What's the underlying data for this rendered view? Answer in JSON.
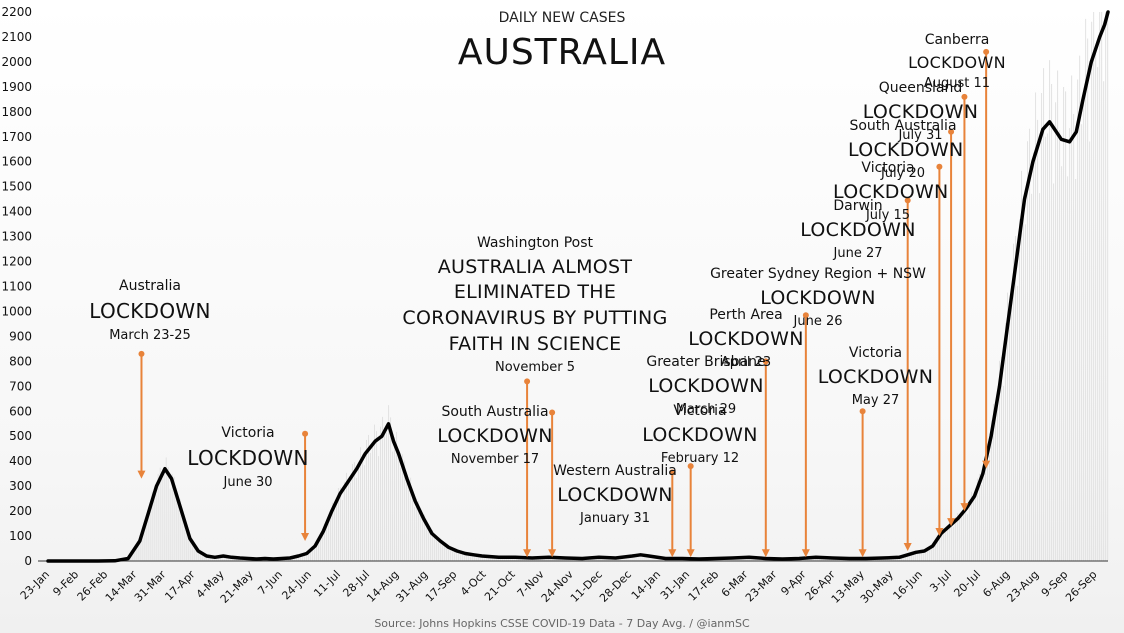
{
  "chart_data": {
    "type": "line",
    "title": "AUSTRALIA",
    "subtitle": "DAILY NEW CASES",
    "source": "Source: Johns Hopkins CSSE COVID-19 Data - 7 Day Avg. / @ianmSC",
    "ylim": [
      0,
      2200
    ],
    "yticks": [
      "0",
      "100",
      "200",
      "300",
      "400",
      "500",
      "600",
      "700",
      "800",
      "900",
      "1000",
      "1100",
      "1200",
      "1300",
      "1400",
      "1500",
      "1600",
      "1700",
      "1800",
      "1900",
      "2000",
      "2100",
      "2200"
    ],
    "xticks": [
      "23-Jan",
      "9-Feb",
      "26-Feb",
      "14-Mar",
      "31-Mar",
      "17-Apr",
      "4-May",
      "21-May",
      "7-Jun",
      "24-Jun",
      "11-Jul",
      "28-Jul",
      "14-Aug",
      "31-Aug",
      "17-Sep",
      "4-Oct",
      "21-Oct",
      "7-Nov",
      "24-Nov",
      "11-Dec",
      "28-Dec",
      "14-Jan",
      "31-Jan",
      "17-Feb",
      "6-Mar",
      "23-Mar",
      "9-Apr",
      "26-Apr",
      "13-May",
      "30-May",
      "16-Jun",
      "3-Jul",
      "20-Jul",
      "6-Aug",
      "23-Aug",
      "9-Sep",
      "26-Sep"
    ],
    "series": [
      {
        "points": [
          [
            0,
            0
          ],
          [
            1,
            0
          ],
          [
            2,
            0
          ],
          [
            3,
            0
          ],
          [
            4,
            1
          ],
          [
            4.8,
            10
          ],
          [
            5.5,
            80
          ],
          [
            6,
            190
          ],
          [
            6.5,
            300
          ],
          [
            7,
            370
          ],
          [
            7.4,
            330
          ],
          [
            8,
            200
          ],
          [
            8.5,
            90
          ],
          [
            9,
            40
          ],
          [
            9.5,
            20
          ],
          [
            10,
            15
          ],
          [
            10.5,
            20
          ],
          [
            11,
            15
          ],
          [
            11.5,
            12
          ],
          [
            12,
            10
          ],
          [
            12.5,
            8
          ],
          [
            13,
            10
          ],
          [
            13.5,
            8
          ],
          [
            14,
            10
          ],
          [
            14.5,
            12
          ],
          [
            15,
            20
          ],
          [
            15.5,
            30
          ],
          [
            16,
            60
          ],
          [
            16.5,
            120
          ],
          [
            17,
            200
          ],
          [
            17.5,
            270
          ],
          [
            18,
            320
          ],
          [
            18.5,
            370
          ],
          [
            19,
            430
          ],
          [
            19.6,
            480
          ],
          [
            20,
            500
          ],
          [
            20.4,
            550
          ],
          [
            20.7,
            480
          ],
          [
            21,
            430
          ],
          [
            21.5,
            330
          ],
          [
            22,
            240
          ],
          [
            22.5,
            170
          ],
          [
            23,
            110
          ],
          [
            23.5,
            80
          ],
          [
            24,
            55
          ],
          [
            24.5,
            40
          ],
          [
            25,
            30
          ],
          [
            25.5,
            25
          ],
          [
            26,
            20
          ],
          [
            27,
            15
          ],
          [
            28,
            15
          ],
          [
            29,
            12
          ],
          [
            30,
            15
          ],
          [
            31,
            12
          ],
          [
            32,
            10
          ],
          [
            33,
            15
          ],
          [
            34,
            12
          ],
          [
            35,
            20
          ],
          [
            35.5,
            25
          ],
          [
            36,
            20
          ],
          [
            37,
            10
          ],
          [
            38,
            10
          ],
          [
            39,
            8
          ],
          [
            40,
            10
          ],
          [
            41,
            12
          ],
          [
            42,
            15
          ],
          [
            43,
            10
          ],
          [
            44,
            8
          ],
          [
            45,
            10
          ],
          [
            46,
            15
          ],
          [
            47,
            12
          ],
          [
            48,
            10
          ],
          [
            49,
            10
          ],
          [
            50,
            12
          ],
          [
            51,
            15
          ],
          [
            51.5,
            25
          ],
          [
            52,
            35
          ],
          [
            52.5,
            40
          ],
          [
            53,
            60
          ],
          [
            53.5,
            110
          ],
          [
            54,
            140
          ],
          [
            54.5,
            170
          ],
          [
            55,
            210
          ],
          [
            55.5,
            260
          ],
          [
            56,
            350
          ],
          [
            56.5,
            500
          ],
          [
            57,
            700
          ],
          [
            57.5,
            950
          ],
          [
            58,
            1200
          ],
          [
            58.5,
            1450
          ],
          [
            59,
            1600
          ],
          [
            59.6,
            1730
          ],
          [
            60,
            1760
          ],
          [
            60.4,
            1720
          ],
          [
            60.7,
            1690
          ],
          [
            61.2,
            1680
          ],
          [
            61.6,
            1720
          ],
          [
            62,
            1850
          ],
          [
            62.5,
            2000
          ],
          [
            63,
            2100
          ],
          [
            63.3,
            2150
          ],
          [
            63.5,
            2200
          ]
        ]
      }
    ],
    "total_x": 63.5,
    "annotations": [
      {
        "pre": "Australia",
        "big": "LOCKDOWN",
        "date": "March 23-25",
        "arrow_x": 5.6,
        "arrow_from": 830,
        "arrow_to": 330
      },
      {
        "pre": "Victoria",
        "big": "LOCKDOWN",
        "date": "June 30",
        "arrow_x": 15.4,
        "arrow_from": 510,
        "arrow_to": 80
      },
      {
        "pre": "Washington Post",
        "big": "AUSTRALIA ALMOST\nELIMINATED THE\nCORONAVIRUS BY PUTTING\nFAITH IN SCIENCE",
        "date": "November 5",
        "arrow_x": 28.7,
        "arrow_from": 720,
        "arrow_to": 15
      },
      {
        "pre": "South Australia",
        "big": "LOCKDOWN",
        "date": "November 17",
        "arrow_x": 30.2,
        "arrow_from": 595,
        "arrow_to": 15
      },
      {
        "pre": "Western Australia",
        "big": "LOCKDOWN",
        "date": "January 31",
        "arrow_x": 37.4,
        "arrow_from": 355,
        "arrow_to": 15
      },
      {
        "pre": "Victoria",
        "big": "LOCKDOWN",
        "date": "February 12",
        "arrow_x": 38.5,
        "arrow_from": 380,
        "arrow_to": 15
      },
      {
        "pre": "Greater Brisbane",
        "big": "LOCKDOWN",
        "date": "March 29",
        "arrow_x": 43,
        "arrow_from": 800,
        "arrow_to": 15
      },
      {
        "pre": "Perth Area",
        "big": "LOCKDOWN",
        "date": "April 23",
        "arrow_x": 45.4,
        "arrow_from": 985,
        "arrow_to": 15
      },
      {
        "pre": "Victoria",
        "big": "LOCKDOWN",
        "date": "May 27",
        "arrow_x": 48.8,
        "arrow_from": 600,
        "arrow_to": 15
      },
      {
        "pre": "Greater Sydney Region + NSW",
        "big": "LOCKDOWN",
        "date": "June 26",
        "arrow_x": 51.5,
        "arrow_from": 1445,
        "arrow_to": 40
      },
      {
        "pre": "Darwin",
        "big": "LOCKDOWN",
        "date": "June 27",
        "arrow_x": 53.4,
        "arrow_from": 1580,
        "arrow_to": 100
      },
      {
        "pre": "Victoria",
        "big": "LOCKDOWN",
        "date": "July 15",
        "arrow_x": 54.1,
        "arrow_from": 1720,
        "arrow_to": 140
      },
      {
        "pre": "South Australia",
        "big": "LOCKDOWN",
        "date": "July 20",
        "arrow_x": 54.9,
        "arrow_from": 1860,
        "arrow_to": 200
      },
      {
        "pre": "Queensland",
        "big": "LOCKDOWN",
        "date": "July 31",
        "arrow_x": 56.2,
        "arrow_from": 2040,
        "arrow_to": 370
      },
      {
        "pre": "Canberra",
        "big": "LOCKDOWN",
        "date": "August 11",
        "arrow_x": null,
        "arrow_from": null,
        "arrow_to": null
      }
    ],
    "colors": {
      "line": "#000000",
      "arrow": "#e8833a",
      "grid": "#e6e6e6"
    },
    "grid": false
  }
}
